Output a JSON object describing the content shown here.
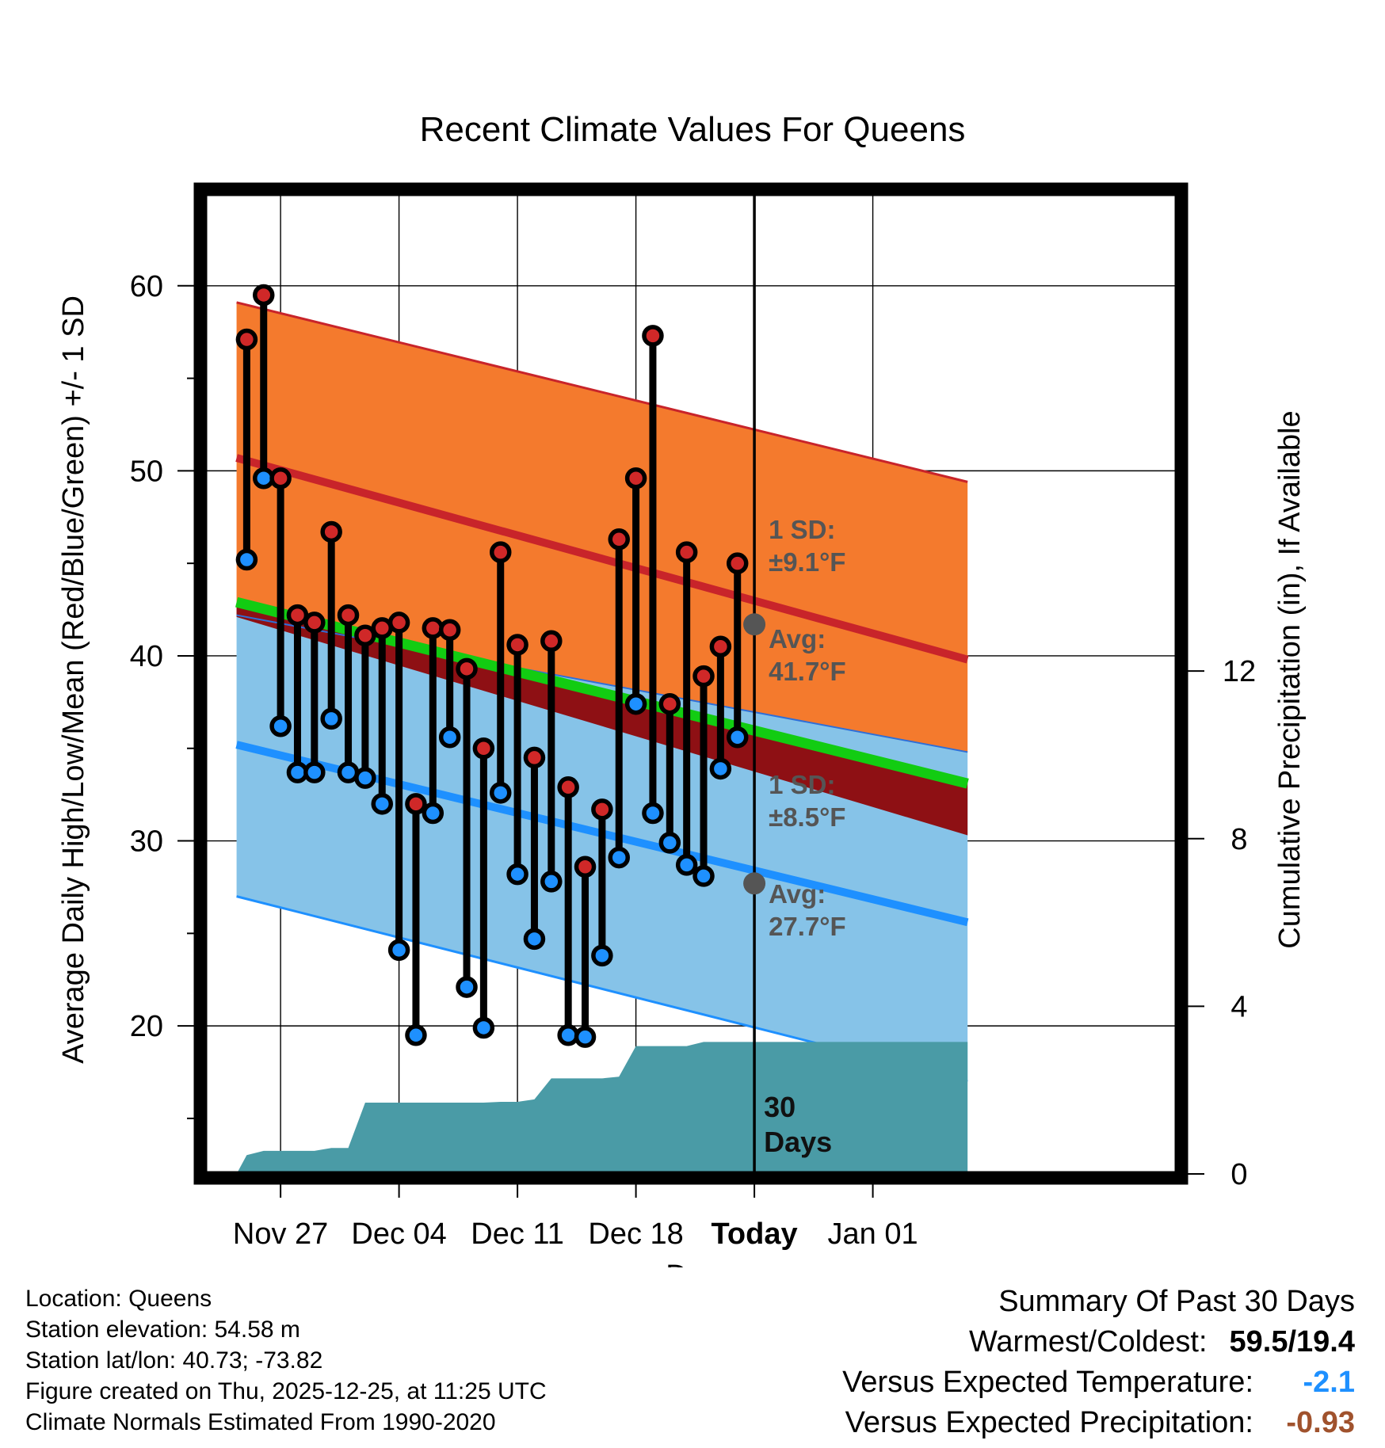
{
  "colors": {
    "high_band": "#F47A2D",
    "high_line": "#C8242A",
    "low_band": "#86C3E8",
    "low_line": "#1E90FF",
    "low_sd_line": "#1E90FF",
    "mean_band": "#8E1014",
    "mean_line": "#12CC12",
    "precip_fill": "#4A9BA6",
    "annotation_marker": "#555555",
    "high_dot": "#D02828",
    "low_dot": "#1E90FF",
    "temp_delta": "#1E90FF",
    "precip_delta": "#A0522D"
  },
  "chart_data": {
    "type": "line",
    "title": "Recent Climate Values For Queens",
    "xlabel": "Day",
    "ylabel": "Average Daily High/Low/Mean (Red/Blue/Green) +/- 1 SD",
    "y2label": "Cumulative Precipitation (in), If Available",
    "xlim_day": [
      -4.5,
      53
    ],
    "ylim": [
      12,
      65
    ],
    "y2lim": [
      0,
      23.4
    ],
    "x_ticks": [
      {
        "day": 0,
        "label": "Nov 27"
      },
      {
        "day": 7,
        "label": "Dec 04"
      },
      {
        "day": 14,
        "label": "Dec 11"
      },
      {
        "day": 21,
        "label": "Dec 18"
      },
      {
        "day": 28,
        "label": "Today",
        "bold": true
      },
      {
        "day": 35,
        "label": "Jan 01"
      }
    ],
    "y_ticks": [
      20,
      30,
      40,
      50,
      60
    ],
    "y_minor_ticks": [
      15,
      25,
      35,
      45,
      55
    ],
    "y2_ticks": [
      0,
      4,
      8,
      12
    ],
    "today_day": 28,
    "normals": {
      "day": [
        -2.6,
        40.6
      ],
      "high_avg": [
        50.7,
        39.8
      ],
      "high_plus_sd": [
        59.1,
        49.4
      ],
      "low_avg": [
        35.2,
        25.6
      ],
      "low_minus_sd": [
        27.0,
        17.0
      ],
      "low_plus_sd": [
        42.2,
        34.8
      ],
      "mean_avg": [
        42.9,
        33.1
      ],
      "mean_minus_sd": [
        42.1,
        30.3
      ]
    },
    "observations": {
      "day": [
        -2,
        -1,
        0,
        1,
        2,
        3,
        4,
        5,
        6,
        7,
        8,
        9,
        10,
        11,
        12,
        13,
        14,
        15,
        16,
        17,
        18,
        19,
        20,
        21,
        22,
        23,
        24,
        25,
        26,
        27
      ],
      "high": [
        57.1,
        59.5,
        49.6,
        42.2,
        41.8,
        46.7,
        42.2,
        41.1,
        41.5,
        41.8,
        32.0,
        41.5,
        41.4,
        39.3,
        35.0,
        45.6,
        40.6,
        34.5,
        40.8,
        32.9,
        28.6,
        31.7,
        46.3,
        49.6,
        57.3,
        37.4,
        45.6,
        38.9,
        40.5,
        45.0
      ],
      "low": [
        45.2,
        49.6,
        36.2,
        33.7,
        33.7,
        36.6,
        33.7,
        33.4,
        32.0,
        24.1,
        19.5,
        31.5,
        35.6,
        22.1,
        19.9,
        32.6,
        28.2,
        24.7,
        27.8,
        19.5,
        19.4,
        23.8,
        29.1,
        37.4,
        31.5,
        29.9,
        28.7,
        28.1,
        33.9,
        35.6
      ]
    },
    "precip": {
      "day": [
        -2.6,
        -2.0,
        -1.0,
        0,
        1,
        2,
        3,
        4,
        5,
        6,
        7,
        8,
        9,
        10,
        11,
        12,
        13,
        14,
        15,
        16,
        17,
        18,
        19,
        20,
        21,
        22,
        23,
        24,
        25,
        26,
        27,
        28,
        40.6
      ],
      "cumulative": [
        0.0,
        0.45,
        0.55,
        0.55,
        0.55,
        0.55,
        0.62,
        0.62,
        1.7,
        1.7,
        1.7,
        1.7,
        1.7,
        1.7,
        1.7,
        1.7,
        1.72,
        1.72,
        1.78,
        2.28,
        2.28,
        2.28,
        2.28,
        2.32,
        3.05,
        3.05,
        3.05,
        3.05,
        3.15,
        3.15,
        3.15,
        3.15,
        3.15
      ]
    },
    "annotations": {
      "high_sd": [
        "1 SD:",
        "±9.1°F"
      ],
      "high_avg": [
        "Avg:",
        "41.7°F"
      ],
      "low_sd": [
        "1 SD:",
        "±8.5°F"
      ],
      "low_avg": [
        "Avg:",
        "27.7°F"
      ],
      "high_avg_value": 41.7,
      "low_avg_value": 27.7,
      "days": [
        "30",
        "Days"
      ]
    }
  },
  "meta": {
    "location": "Location: Queens",
    "elevation": "Station elevation: 54.58 m",
    "latlon": "Station lat/lon: 40.73; -73.82",
    "created": "Figure created on Thu, 2025-12-25, at 11:25 UTC",
    "normals": "Climate Normals Estimated From 1990-2020"
  },
  "summary": {
    "heading": "Summary Of Past 30 Days",
    "warm_cold_label": "Warmest/Coldest:",
    "warm_cold_value": "59.5/19.4",
    "temp_label": "Versus Expected Temperature:",
    "temp_value": "-2.1",
    "precip_label": "Versus Expected Precipitation:",
    "precip_value": "-0.93"
  }
}
